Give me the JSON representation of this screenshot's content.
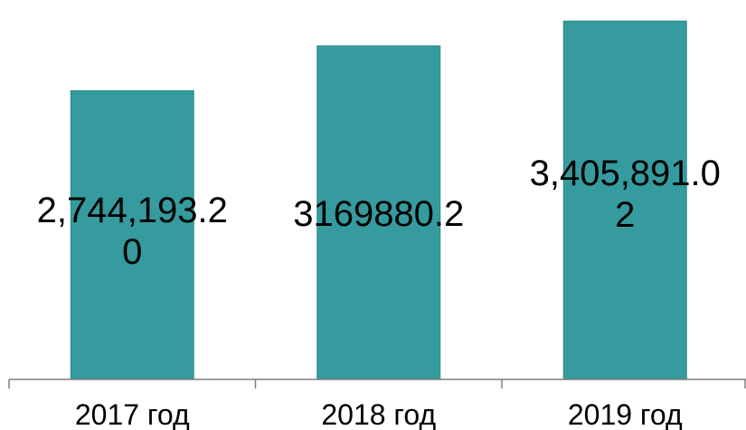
{
  "chart_data": {
    "type": "bar",
    "categories": [
      "2017 год",
      "2018 год",
      "2019 год"
    ],
    "values": [
      2744193.2,
      3169880.2,
      3405891.02
    ],
    "data_labels": [
      [
        "2,744,193.2",
        "0"
      ],
      [
        "3169880.2"
      ],
      [
        "3,405,891.0",
        "2"
      ]
    ],
    "title": "",
    "xlabel": "",
    "ylabel": "",
    "ylim": [
      0,
      3520000
    ],
    "grid": false,
    "legend": "none"
  },
  "colors": {
    "bar_fill": "#359b9e",
    "axis": "#7f7f7f",
    "text": "#000000"
  }
}
